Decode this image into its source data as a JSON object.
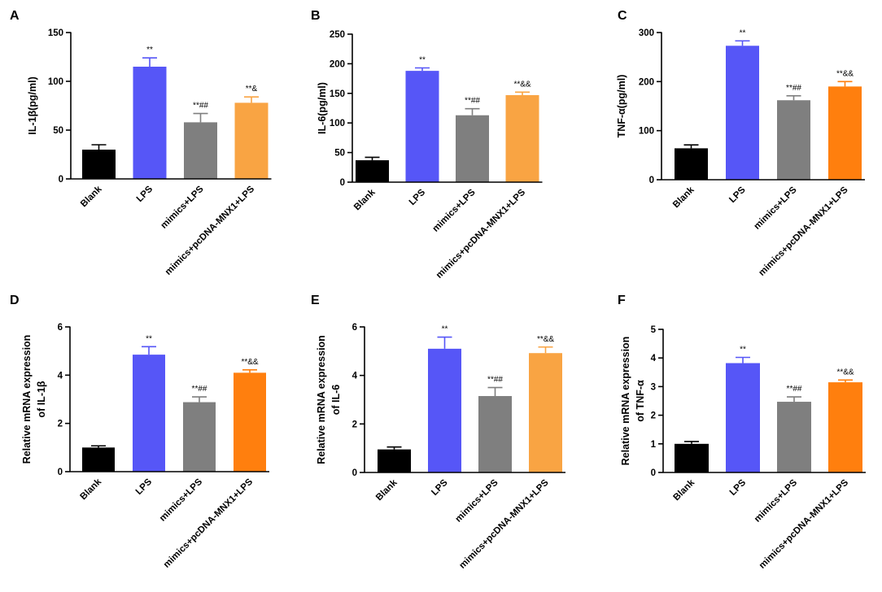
{
  "colors": {
    "Blank": "#000000",
    "LPS": "#5656f7",
    "mimics+LPS": "#7f7f7f",
    "mimics+pcDNA-MNX1+LPS": "#f9a443",
    "mimics+pcDNA-MNX1+LPS_dark": "#ff7f0e"
  },
  "chart_data": [
    {
      "panel": "A",
      "type": "bar",
      "ylabel": "IL-1β(pg/ml)",
      "categories": [
        "Blank",
        "LPS",
        "mimics+LPS",
        "mimics+pcDNA-MNX1+LPS"
      ],
      "values": [
        30,
        115,
        58,
        78
      ],
      "errors": [
        5,
        9,
        9,
        6
      ],
      "annotations": [
        "",
        "**",
        "**##",
        "**&"
      ],
      "ylim": [
        0,
        150
      ],
      "yticks": [
        0,
        50,
        100,
        150
      ],
      "bar_colors": [
        "#000000",
        "#5656f7",
        "#7f7f7f",
        "#f9a443"
      ]
    },
    {
      "panel": "B",
      "type": "bar",
      "ylabel": "IL-6(pg/ml)",
      "categories": [
        "Blank",
        "LPS",
        "mimics+LPS",
        "mimics+pcDNA-MNX1+LPS"
      ],
      "values": [
        37,
        188,
        113,
        147
      ],
      "errors": [
        5,
        5,
        11,
        5
      ],
      "annotations": [
        "",
        "**",
        "**##",
        "**&&"
      ],
      "ylim": [
        0,
        250
      ],
      "yticks": [
        0,
        50,
        100,
        150,
        200,
        250
      ],
      "bar_colors": [
        "#000000",
        "#5656f7",
        "#7f7f7f",
        "#f9a443"
      ]
    },
    {
      "panel": "C",
      "type": "bar",
      "ylabel": "TNF-α(pg/ml)",
      "categories": [
        "Blank",
        "LPS",
        "mimics+LPS",
        "mimics+pcDNA-MNX1+LPS"
      ],
      "values": [
        64,
        273,
        162,
        190
      ],
      "errors": [
        7,
        10,
        9,
        10
      ],
      "annotations": [
        "",
        "**",
        "**##",
        "**&&"
      ],
      "ylim": [
        0,
        300
      ],
      "yticks": [
        0,
        100,
        200,
        300
      ],
      "bar_colors": [
        "#000000",
        "#5656f7",
        "#7f7f7f",
        "#ff7f0e"
      ]
    },
    {
      "panel": "D",
      "type": "bar",
      "ylabel_lines": [
        "Relative  mRNA expression",
        "of IL-1β"
      ],
      "categories": [
        "Blank",
        "LPS",
        "mimics+LPS",
        "mimics+pcDNA-MNX1+LPS"
      ],
      "values": [
        1.0,
        4.85,
        2.88,
        4.1
      ],
      "errors": [
        0.07,
        0.33,
        0.22,
        0.12
      ],
      "annotations": [
        "",
        "**",
        "**##",
        "**&&"
      ],
      "ylim": [
        0,
        6
      ],
      "yticks": [
        0,
        2,
        4,
        6
      ],
      "bar_colors": [
        "#000000",
        "#5656f7",
        "#7f7f7f",
        "#ff7f0e"
      ]
    },
    {
      "panel": "E",
      "type": "bar",
      "ylabel_lines": [
        "Relative  mRNA expression",
        "of IL-6"
      ],
      "categories": [
        "Blank",
        "LPS",
        "mimics+LPS",
        "mimics+pcDNA-MNX1+LPS"
      ],
      "values": [
        0.95,
        5.1,
        3.15,
        4.92
      ],
      "errors": [
        0.1,
        0.48,
        0.35,
        0.25
      ],
      "annotations": [
        "",
        "**",
        "**##",
        "**&&"
      ],
      "ylim": [
        0,
        6
      ],
      "yticks": [
        0,
        2,
        4,
        6
      ],
      "bar_colors": [
        "#000000",
        "#5656f7",
        "#7f7f7f",
        "#f9a443"
      ]
    },
    {
      "panel": "F",
      "type": "bar",
      "ylabel_lines": [
        "Relative  mRNA expression",
        "of TNF-α"
      ],
      "categories": [
        "Blank",
        "LPS",
        "mimics+LPS",
        "mimics+pcDNA-MNX1+LPS"
      ],
      "values": [
        1.0,
        3.82,
        2.47,
        3.15
      ],
      "errors": [
        0.08,
        0.2,
        0.17,
        0.08
      ],
      "annotations": [
        "",
        "**",
        "**##",
        "**&&"
      ],
      "ylim": [
        0,
        5
      ],
      "yticks": [
        0,
        1,
        2,
        3,
        4,
        5
      ],
      "bar_colors": [
        "#000000",
        "#5656f7",
        "#7f7f7f",
        "#ff7f0e"
      ]
    }
  ]
}
